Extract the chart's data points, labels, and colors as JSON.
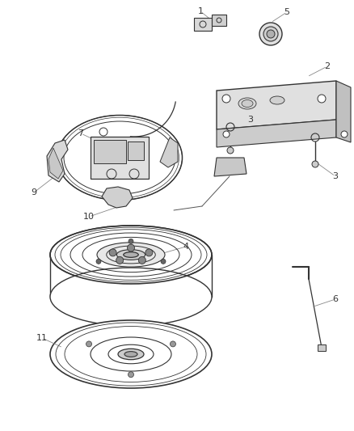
{
  "bg_color": "#ffffff",
  "line_color": "#333333",
  "label_color": "#333333",
  "gray_light": "#c8c8c8",
  "gray_mid": "#999999",
  "gray_dark": "#666666"
}
